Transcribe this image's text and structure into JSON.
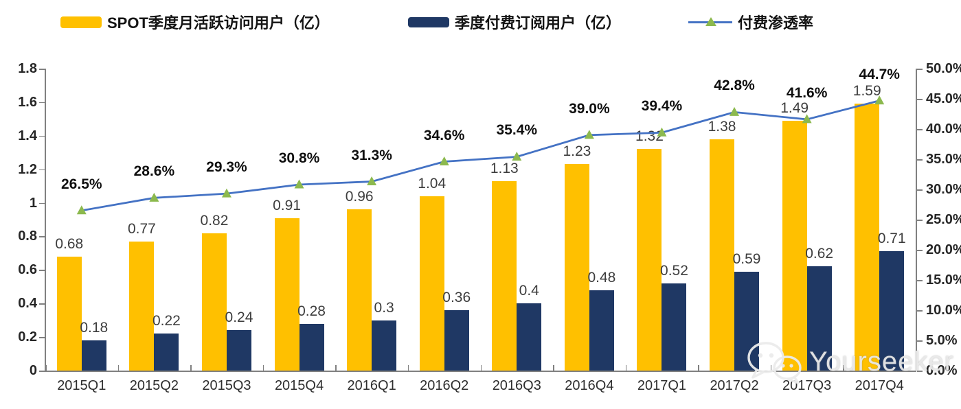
{
  "legend": {
    "items": [
      {
        "label": "SPOT季度月活跃访问用户（亿）",
        "swatch": "yellow-bar",
        "color": "#FFC000"
      },
      {
        "label": "季度付费订阅用户（亿）",
        "swatch": "navy-bar",
        "color": "#1F3864"
      },
      {
        "label": "付费渗透率",
        "swatch": "line-triangle",
        "line_color": "#4472C4",
        "marker_color": "#8CB94E"
      }
    ]
  },
  "chart_data": {
    "type": "combo: grouped bars + line",
    "categories": [
      "2015Q1",
      "2015Q2",
      "2015Q3",
      "2015Q4",
      "2016Q1",
      "2016Q2",
      "2016Q3",
      "2016Q4",
      "2017Q1",
      "2017Q2",
      "2017Q3",
      "2017Q4"
    ],
    "series": [
      {
        "name": "SPOT季度月活跃访问用户（亿）",
        "type": "bar",
        "axis": "left",
        "color": "#FFC000",
        "values": [
          0.68,
          0.77,
          0.82,
          0.91,
          0.96,
          1.04,
          1.13,
          1.23,
          1.32,
          1.38,
          1.49,
          1.59
        ],
        "labels": [
          "0.68",
          "0.77",
          "0.82",
          "0.91",
          "0.96",
          "1.04",
          "1.13",
          "1.23",
          "1.32",
          "1.38",
          "1.49",
          "1.59"
        ]
      },
      {
        "name": "季度付费订阅用户（亿）",
        "type": "bar",
        "axis": "left",
        "color": "#1F3864",
        "values": [
          0.18,
          0.22,
          0.24,
          0.28,
          0.3,
          0.36,
          0.4,
          0.48,
          0.52,
          0.59,
          0.62,
          0.71
        ],
        "labels": [
          "0.18",
          "0.22",
          "0.24",
          "0.28",
          "0.3",
          "0.36",
          "0.4",
          "0.48",
          "0.52",
          "0.59",
          "0.62",
          "0.71"
        ]
      },
      {
        "name": "付费渗透率",
        "type": "line",
        "axis": "right",
        "color": "#4472C4",
        "marker": "triangle-up",
        "marker_color": "#8CB94E",
        "values": [
          26.5,
          28.6,
          29.3,
          30.8,
          31.3,
          34.6,
          35.4,
          39.0,
          39.4,
          42.8,
          41.6,
          44.7
        ],
        "labels": [
          "26.5%",
          "28.6%",
          "29.3%",
          "30.8%",
          "31.3%",
          "34.6%",
          "35.4%",
          "39.0%",
          "39.4%",
          "42.8%",
          "41.6%",
          "44.7%"
        ]
      }
    ],
    "left_axis": {
      "min": 0,
      "max": 1.8,
      "step": 0.2,
      "tick_labels": [
        "1.8",
        "1.6",
        "1.4",
        "1.2",
        "1",
        "0.8",
        "0.6",
        "0.4",
        "0.2",
        "0"
      ]
    },
    "right_axis": {
      "min": 0,
      "max": 50,
      "step": 5,
      "unit": "%",
      "tick_labels": [
        "50.0%",
        "45.0%",
        "40.0%",
        "35.0%",
        "30.0%",
        "25.0%",
        "20.0%",
        "15.0%",
        "10.0%",
        "5.0%",
        "0.0%"
      ]
    },
    "grid": false,
    "legend_position": "top"
  },
  "watermark": {
    "text": "Yourseeker",
    "icon": "wechat-chat-bubbles-icon"
  }
}
